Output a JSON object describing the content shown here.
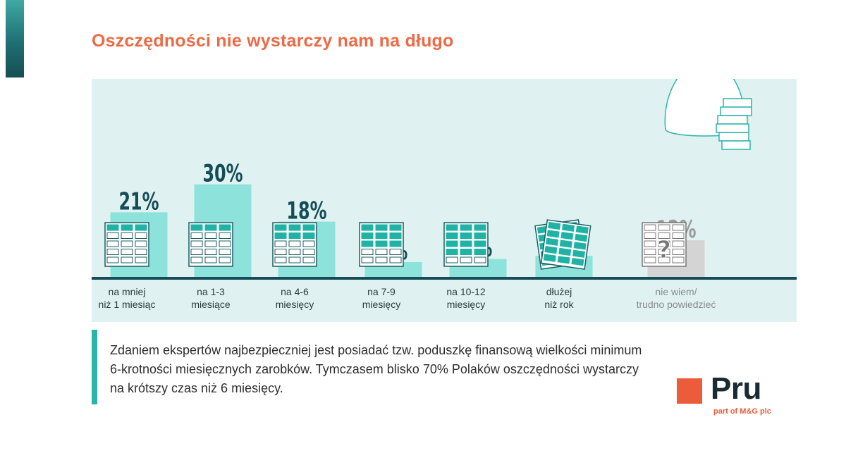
{
  "title": "Oszczędności nie wystarczy nam na długo",
  "chart_data": {
    "type": "bar",
    "categories": [
      [
        "na mniej",
        "niż 1 miesiąc"
      ],
      [
        "na 1-3",
        "miesiące"
      ],
      [
        "na 4-6",
        "miesięcy"
      ],
      [
        "na 7-9",
        "miesięcy"
      ],
      [
        "na 10-12",
        "miesięcy"
      ],
      [
        "dłużej",
        "niż rok"
      ],
      [
        "nie wiem/",
        "trudno powiedzieć"
      ]
    ],
    "values": [
      21,
      30,
      18,
      5,
      6,
      7,
      12
    ],
    "value_labels": [
      "21%",
      "30%",
      "18%",
      "5%",
      "6%",
      "7%",
      "12%"
    ],
    "unit": "%",
    "ylim": [
      0,
      34
    ],
    "bar_colors": [
      "#8de3dc",
      "#8de3dc",
      "#8de3dc",
      "#8de3dc",
      "#8de3dc",
      "#8de3dc",
      "#d4d4d4"
    ],
    "label_colors": [
      "#154c57",
      "#154c57",
      "#154c57",
      "#154c57",
      "#154c57",
      "#154c57",
      "#9a9a9a"
    ],
    "grid": false,
    "legend": "none"
  },
  "colors": {
    "accent_orange": "#ec6a45",
    "teal_dark": "#154c57",
    "teal_mid": "#2bb5aa",
    "teal_light": "#8de3dc",
    "panel_bg": "#dff2f1",
    "grey_bar": "#d4d4d4"
  },
  "icons": [
    "calendar-icon",
    "clock-icon",
    "money-bag-icon",
    "coin-stack-icon",
    "question-mark-icon"
  ],
  "question_glyph": "?",
  "quote": "Zdaniem ekspertów najbezpieczniej jest posiadać tzw. poduszkę finansową wielkości minimum 6-krotności miesięcznych zarobków. Tymczasem blisko 70% Polaków oszczędności wystarczy na krótszy czas niż 6 miesięcy.",
  "logo": {
    "name": "Pru",
    "tagline": "part of M&G plc"
  }
}
